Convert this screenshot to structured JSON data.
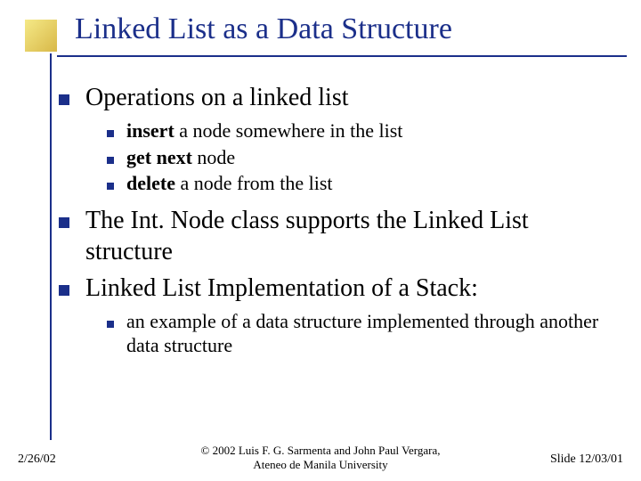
{
  "accent": {
    "square_color": "#d8b848",
    "line_color": "#1b2f8a"
  },
  "title": {
    "text": "Linked List as a Data Structure",
    "color": "#1b2f8a",
    "fontsize": 34
  },
  "body": {
    "fontsize_l1": 28,
    "fontsize_l2": 22,
    "bullet_color": "#1b2f8a",
    "items": [
      {
        "level": 1,
        "text": "Operations on a linked list"
      },
      {
        "level": 2,
        "html": "<b>insert</b> a node somewhere in the list"
      },
      {
        "level": 2,
        "html": "<b>get next</b> node"
      },
      {
        "level": 2,
        "html": "<b>delete</b> a node from the list"
      },
      {
        "level": 1,
        "text": "The Int. Node class supports the Linked List structure"
      },
      {
        "level": 1,
        "text": "Linked List Implementation of a Stack:"
      },
      {
        "level": 2,
        "text": "an example of a data structure implemented through another data structure"
      }
    ]
  },
  "footer": {
    "left": "2/26/02",
    "center_line1": "© 2002 Luis F. G. Sarmenta and John Paul Vergara,",
    "center_line2": "Ateneo de Manila University",
    "right": "Slide 12/03/01",
    "fontsize": 14
  }
}
